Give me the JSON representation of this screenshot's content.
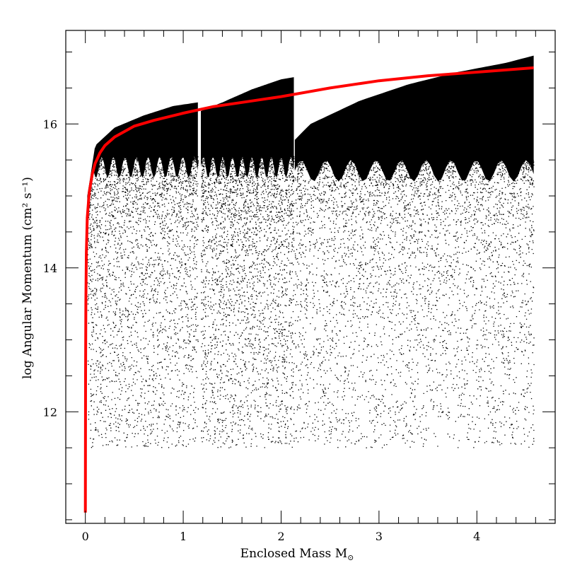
{
  "chart_data": {
    "type": "scatter",
    "title": "",
    "xlabel": "Enclosed Mass M",
    "xlabel_subscript_symbol": "⊙",
    "ylabel": "log Angular Momentum (cm² s⁻¹)",
    "xlim": [
      -0.2,
      4.8
    ],
    "ylim": [
      10.45,
      17.3
    ],
    "x_ticks": [
      0,
      1,
      2,
      3,
      4
    ],
    "y_ticks": [
      12,
      14,
      16
    ],
    "x_minor_step": 0.2,
    "y_minor_step": 0.5,
    "grid": false,
    "legend": "none",
    "colors": {
      "points": "#000000",
      "curve": "#ff0000"
    },
    "scatter_envelope": {
      "description_of_regions": "dense scatter between a lower fuzzy edge and sharp upper edge, with breaks near 1.15 and 2.13",
      "segments": [
        {
          "x": [
            0.02,
            0.1,
            0.3,
            0.6,
            0.9,
            1.15
          ],
          "upper": [
            15.0,
            15.7,
            15.95,
            16.12,
            16.25,
            16.3
          ]
        },
        {
          "x": [
            1.18,
            1.4,
            1.7,
            2.0,
            2.13
          ],
          "upper": [
            16.18,
            16.3,
            16.48,
            16.62,
            16.65
          ]
        },
        {
          "x": [
            2.14,
            2.3,
            2.8,
            3.3,
            3.8,
            4.3,
            4.58
          ],
          "upper": [
            15.78,
            16.0,
            16.32,
            16.55,
            16.72,
            16.85,
            16.95
          ]
        }
      ],
      "lower_extent": 11.5
    },
    "series": [
      {
        "type": "line",
        "x": [
          0.0,
          0.002,
          0.005,
          0.01,
          0.02,
          0.04,
          0.07,
          0.1,
          0.15,
          0.2,
          0.3,
          0.5,
          0.7,
          1.0,
          1.3,
          1.6,
          2.0,
          2.5,
          3.0,
          3.5,
          4.0,
          4.58
        ],
        "y": [
          10.6,
          12.5,
          13.5,
          14.2,
          14.7,
          15.05,
          15.3,
          15.45,
          15.6,
          15.7,
          15.82,
          15.97,
          16.05,
          16.15,
          16.24,
          16.3,
          16.38,
          16.5,
          16.6,
          16.67,
          16.72,
          16.78
        ]
      }
    ]
  }
}
